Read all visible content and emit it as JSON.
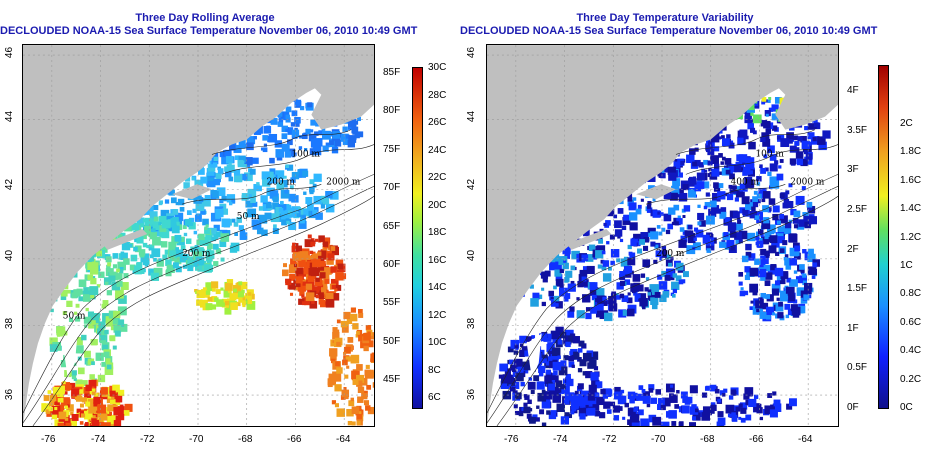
{
  "left_panel": {
    "title_line1": "Three Day Rolling Average",
    "title_line2": "DECLOUDED NOAA-15 Sea Surface Temperature November 06, 2010 10:49 GMT",
    "colorbar_c": [
      "30C",
      "28C",
      "26C",
      "24C",
      "22C",
      "20C",
      "18C",
      "16C",
      "14C",
      "12C",
      "10C",
      "8C",
      "6C"
    ],
    "colorbar_f": [
      "85F",
      "80F",
      "75F",
      "70F",
      "65F",
      "60F",
      "55F",
      "50F",
      "45F"
    ],
    "contour_labels": [
      "100 m",
      "200 m",
      "2000 m",
      "200 m",
      "50 m",
      "50 m"
    ]
  },
  "right_panel": {
    "title_line1": "Three Day Temperature Variability",
    "title_line2": "DECLOUDED NOAA-15 Sea Surface Temperature November 06, 2010 10:49 GMT",
    "colorbar_c": [
      "2C",
      "1.8C",
      "1.6C",
      "1.4C",
      "1.2C",
      "1C",
      "0.8C",
      "0.6C",
      "0.4C",
      "0.2C",
      "0C"
    ],
    "colorbar_f": [
      "4F",
      "3.5F",
      "3F",
      "2.5F",
      "2F",
      "1.5F",
      "1F",
      "0.5F",
      "0F"
    ],
    "contour_labels": [
      "100 m",
      "200 m",
      "2000 m",
      "400 m"
    ]
  },
  "x_ticks": [
    "-76",
    "-74",
    "-72",
    "-70",
    "-68",
    "-66",
    "-64"
  ],
  "y_ticks": [
    "46",
    "44",
    "42",
    "40",
    "38",
    "36"
  ],
  "colors": {
    "title": "#1b1bb0",
    "land": "#bfbfbf",
    "ocean_nodata": "#ffffff"
  }
}
